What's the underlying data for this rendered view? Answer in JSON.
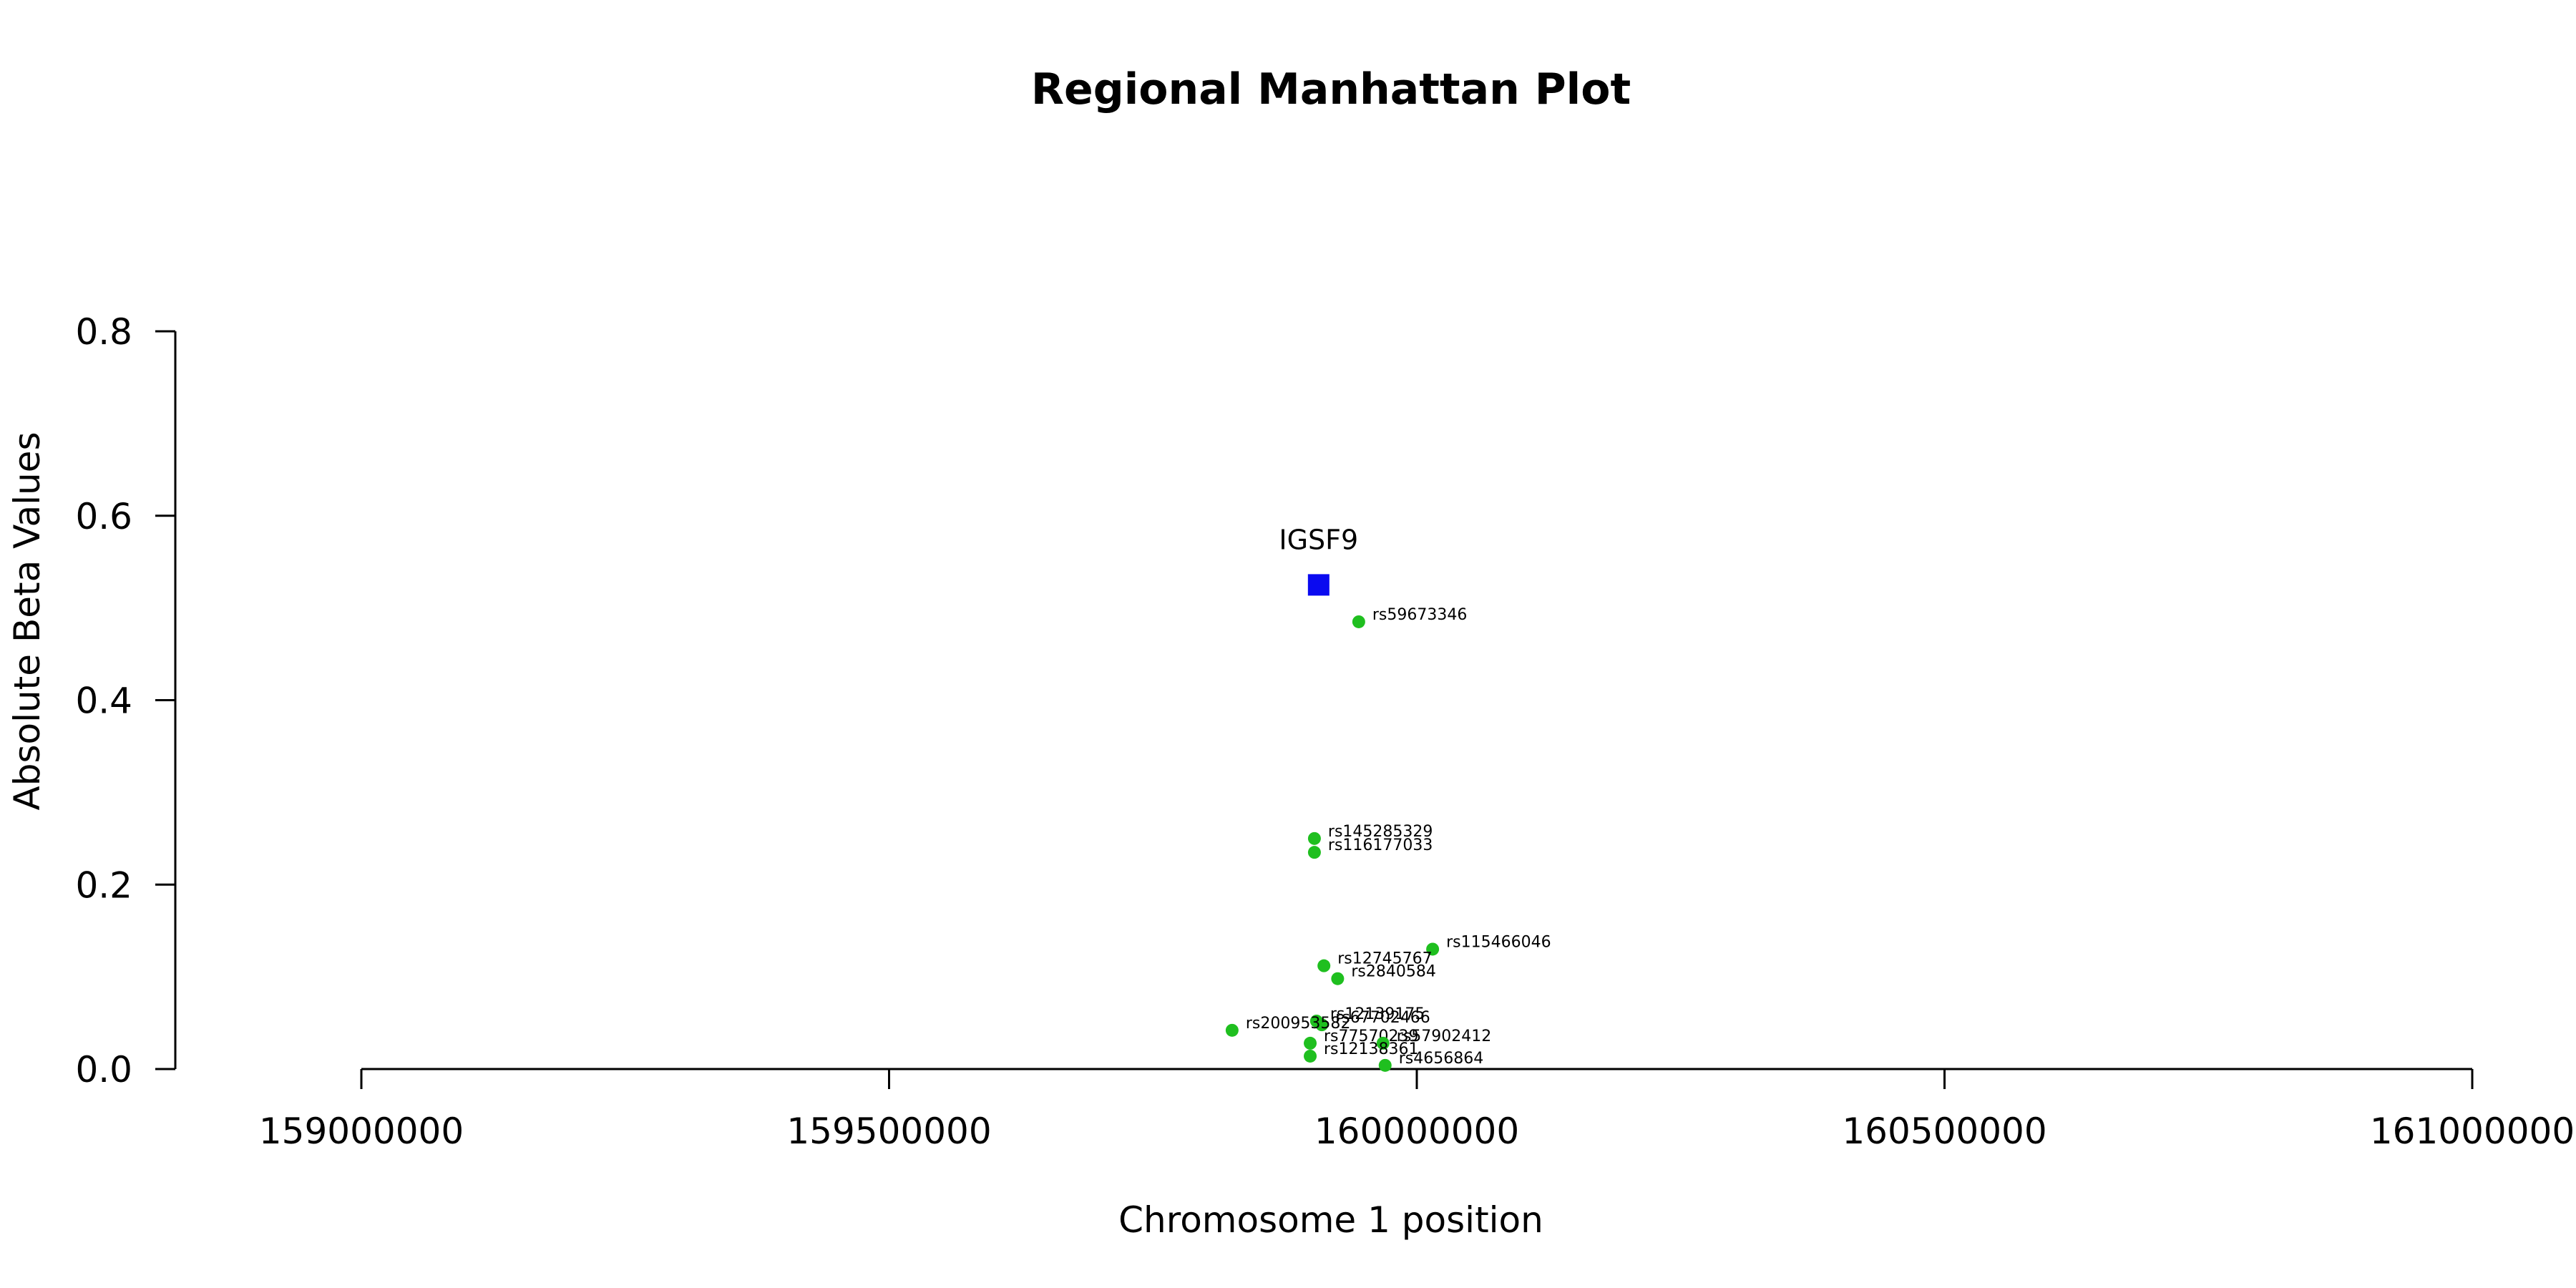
{
  "chart_data": {
    "type": "scatter",
    "title": "Regional Manhattan Plot",
    "xlabel": "Chromosome 1 position",
    "ylabel": "Absolute Beta Values",
    "xlim": [
      159000000,
      161000000
    ],
    "ylim": [
      0,
      0.8
    ],
    "x_ticks": [
      159000000,
      159500000,
      160000000,
      160500000,
      161000000
    ],
    "x_tick_labels": [
      "159000000",
      "159500000",
      "160000000",
      "160500000",
      "161000000"
    ],
    "y_ticks": [
      0.0,
      0.2,
      0.4,
      0.6,
      0.8
    ],
    "y_tick_labels": [
      "0.0",
      "0.2",
      "0.4",
      "0.6",
      "0.8"
    ],
    "grid": false,
    "colors": {
      "snp": "#1fbf1f",
      "gene": "#0a0af0",
      "axis": "#000000"
    },
    "gene": {
      "name": "IGSF9",
      "x": 159907000,
      "y": 0.525
    },
    "points": [
      {
        "label": "rs59673346",
        "x": 159945000,
        "y": 0.485
      },
      {
        "label": "rs145285329",
        "x": 159903000,
        "y": 0.25
      },
      {
        "label": "rs116177033",
        "x": 159903000,
        "y": 0.235
      },
      {
        "label": "rs115466046",
        "x": 160015000,
        "y": 0.13
      },
      {
        "label": "rs12745767",
        "x": 159912000,
        "y": 0.112
      },
      {
        "label": "rs2840584",
        "x": 159925000,
        "y": 0.098
      },
      {
        "label": "rs12139175",
        "x": 159905000,
        "y": 0.052
      },
      {
        "label": "rs67702466",
        "x": 159910000,
        "y": 0.048
      },
      {
        "label": "rs200953582",
        "x": 159825000,
        "y": 0.042
      },
      {
        "label": "rs77570239",
        "x": 159899000,
        "y": 0.028
      },
      {
        "label": "rs57902412",
        "x": 159968000,
        "y": 0.028
      },
      {
        "label": "rs12138361",
        "x": 159899000,
        "y": 0.014
      },
      {
        "label": "rs4656864",
        "x": 159970000,
        "y": 0.004
      }
    ]
  }
}
